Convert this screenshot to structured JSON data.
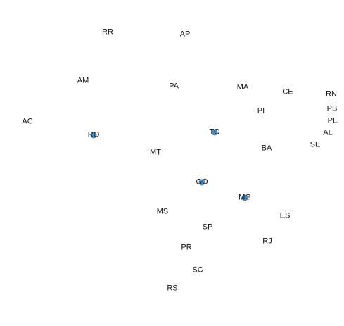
{
  "map": {
    "label_color": "#111111",
    "marker_color": "#4a90c8",
    "states": [
      {
        "abbr": "RR",
        "marker": false
      },
      {
        "abbr": "AP",
        "marker": false
      },
      {
        "abbr": "AM",
        "marker": false
      },
      {
        "abbr": "PA",
        "marker": false
      },
      {
        "abbr": "MA",
        "marker": false
      },
      {
        "abbr": "CE",
        "marker": false
      },
      {
        "abbr": "RN",
        "marker": false
      },
      {
        "abbr": "PB",
        "marker": false
      },
      {
        "abbr": "PE",
        "marker": false
      },
      {
        "abbr": "AL",
        "marker": false
      },
      {
        "abbr": "SE",
        "marker": false
      },
      {
        "abbr": "PI",
        "marker": false
      },
      {
        "abbr": "AC",
        "marker": false
      },
      {
        "abbr": "RO",
        "marker": true
      },
      {
        "abbr": "TO",
        "marker": true
      },
      {
        "abbr": "BA",
        "marker": false
      },
      {
        "abbr": "MT",
        "marker": false
      },
      {
        "abbr": "GO",
        "marker": true
      },
      {
        "abbr": "MG",
        "marker": true
      },
      {
        "abbr": "MS",
        "marker": false
      },
      {
        "abbr": "ES",
        "marker": false
      },
      {
        "abbr": "SP",
        "marker": false
      },
      {
        "abbr": "PR",
        "marker": false
      },
      {
        "abbr": "RJ",
        "marker": false
      },
      {
        "abbr": "SC",
        "marker": false
      },
      {
        "abbr": "RS",
        "marker": false
      }
    ]
  }
}
